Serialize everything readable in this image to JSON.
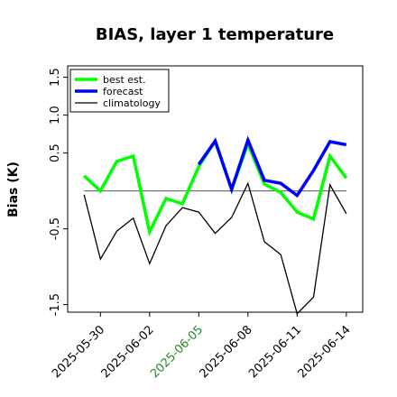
{
  "chart_data": {
    "type": "line",
    "title": "BIAS, layer 1 temperature",
    "xlabel": "",
    "ylabel": "Bias (K)",
    "x": [
      "2025-05-29",
      "2025-05-30",
      "2025-05-31",
      "2025-06-01",
      "2025-06-02",
      "2025-06-03",
      "2025-06-04",
      "2025-06-05",
      "2025-06-06",
      "2025-06-07",
      "2025-06-08",
      "2025-06-09",
      "2025-06-10",
      "2025-06-11",
      "2025-06-12",
      "2025-06-13",
      "2025-06-14"
    ],
    "xlim": [
      "2025-05-28",
      "2025-06-15"
    ],
    "ylim": [
      -1.6,
      1.65
    ],
    "xticks": [
      "2025-05-30",
      "2025-06-02",
      "2025-06-05",
      "2025-06-08",
      "2025-06-11",
      "2025-06-14"
    ],
    "xtick_colors": [
      "#000000",
      "#000000",
      "#228B22",
      "#000000",
      "#000000",
      "#000000"
    ],
    "yticks": [
      -1.5,
      -0.5,
      0.5,
      1.0,
      1.5
    ],
    "ytick_labels": [
      "-1.5",
      "-0.5",
      "0.5",
      "1.0",
      "1.5"
    ],
    "grid": false,
    "legend_position": "top-left",
    "reference_line": 0,
    "series": [
      {
        "name": "best est.",
        "color": "#00ff00",
        "values": [
          0.2,
          0.0,
          0.39,
          0.46,
          -0.54,
          -0.1,
          -0.17,
          0.32,
          0.66,
          0.02,
          0.62,
          0.09,
          -0.02,
          -0.28,
          -0.37,
          0.46,
          0.17
        ]
      },
      {
        "name": "forecast",
        "color": "#0000ff",
        "values": [
          null,
          null,
          null,
          null,
          null,
          null,
          null,
          0.35,
          0.66,
          0.02,
          0.67,
          0.14,
          0.1,
          -0.06,
          0.27,
          0.65,
          0.61
        ]
      },
      {
        "name": "climatology",
        "color": "#000000",
        "values": [
          -0.05,
          -0.9,
          -0.53,
          -0.36,
          -0.96,
          -0.46,
          -0.22,
          -0.28,
          -0.56,
          -0.35,
          0.1,
          -0.67,
          -0.84,
          -1.62,
          -1.4,
          0.08,
          -0.3
        ]
      }
    ]
  }
}
